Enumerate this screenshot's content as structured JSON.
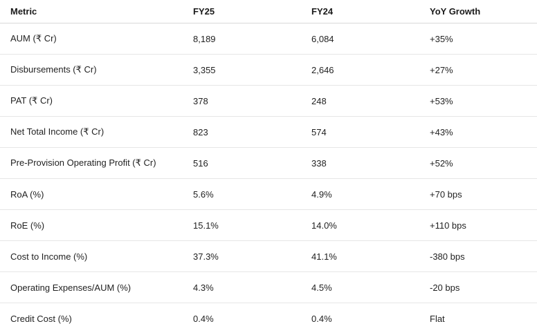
{
  "table": {
    "headers": [
      "Metric",
      "FY25",
      "FY24",
      "YoY Growth"
    ],
    "rows": [
      [
        "AUM (₹ Cr)",
        "8,189",
        "6,084",
        "+35%"
      ],
      [
        "Disbursements (₹ Cr)",
        "3,355",
        "2,646",
        "+27%"
      ],
      [
        "PAT (₹ Cr)",
        "378",
        "248",
        "+53%"
      ],
      [
        "Net Total Income (₹ Cr)",
        "823",
        "574",
        "+43%"
      ],
      [
        "Pre-Provision Operating Profit (₹ Cr)",
        "516",
        "338",
        "+52%"
      ],
      [
        "RoA (%)",
        "5.6%",
        "4.9%",
        "+70 bps"
      ],
      [
        "RoE (%)",
        "15.1%",
        "14.0%",
        "+110 bps"
      ],
      [
        "Cost to Income (%)",
        "37.3%",
        "41.1%",
        "-380 bps"
      ],
      [
        "Operating Expenses/AUM (%)",
        "4.3%",
        "4.5%",
        "-20 bps"
      ],
      [
        "Credit Cost (%)",
        "0.4%",
        "0.4%",
        "Flat"
      ]
    ]
  }
}
